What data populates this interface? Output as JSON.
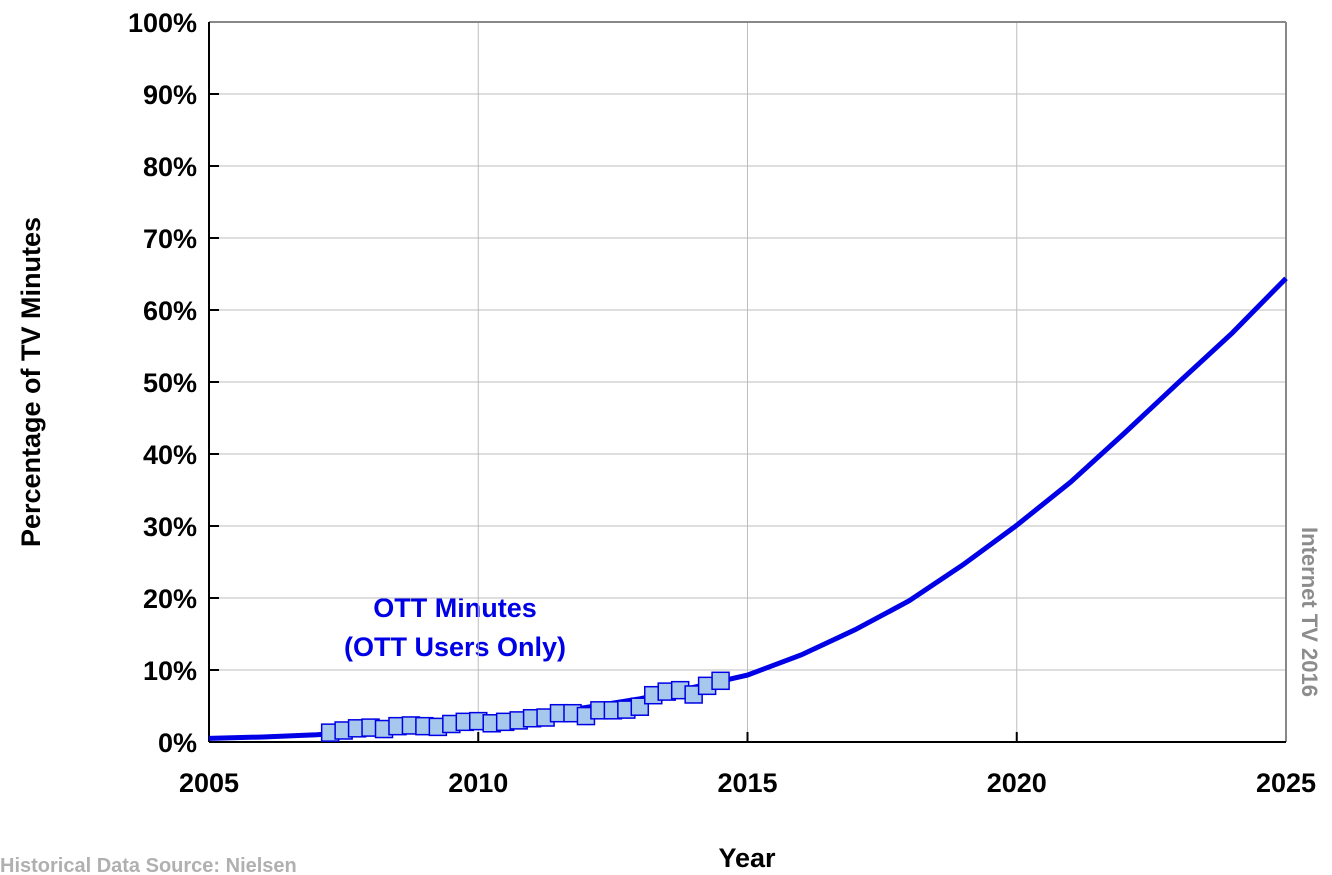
{
  "chart_data": {
    "type": "line",
    "y_label": "Percentage of TV Minutes",
    "x_label": "Year",
    "annotation": [
      "OTT Minutes",
      "(OTT Users Only)"
    ],
    "watermark": "Internet TV 2016",
    "source": "Historical Data Source: Nielsen",
    "xlim": [
      2005,
      2025
    ],
    "xticks": [
      2005,
      2010,
      2015,
      2020,
      2025
    ],
    "ylim": [
      0,
      100
    ],
    "yticks": [
      {
        "value": 0,
        "label": "0%"
      },
      {
        "value": 10,
        "label": "10%"
      },
      {
        "value": 20,
        "label": "20%"
      },
      {
        "value": 30,
        "label": "30%"
      },
      {
        "value": 40,
        "label": "40%"
      },
      {
        "value": 50,
        "label": "50%"
      },
      {
        "value": 60,
        "label": "60%"
      },
      {
        "value": 70,
        "label": "70%"
      },
      {
        "value": 80,
        "label": "80%"
      },
      {
        "value": 90,
        "label": "90%"
      },
      {
        "value": 100,
        "label": "100%"
      }
    ],
    "grid": true,
    "series": [
      {
        "color": "#0000e6",
        "style": "line",
        "x": [
          2005,
          2006,
          2007,
          2008,
          2009,
          2010,
          2011,
          2012,
          2013,
          2014,
          2015,
          2016,
          2017,
          2018,
          2019,
          2020,
          2021,
          2022,
          2023,
          2024,
          2025
        ],
        "values": [
          0.5,
          0.7,
          1.0,
          1.5,
          2.2,
          3.0,
          3.8,
          4.8,
          6.0,
          7.6,
          9.3,
          12.1,
          15.6,
          19.6,
          24.6,
          30.1,
          36.1,
          42.9,
          49.9,
          56.8,
          64.4
        ]
      },
      {
        "color": "#a6c8ec",
        "edge_color": "#0000e6",
        "style": "markers",
        "x": [
          2007.25,
          2007.5,
          2007.75,
          2008,
          2008.25,
          2008.5,
          2008.75,
          2009,
          2009.25,
          2009.5,
          2009.75,
          2010,
          2010.25,
          2010.5,
          2010.75,
          2011,
          2011.25,
          2011.5,
          2011.75,
          2012,
          2012.25,
          2012.5,
          2012.75,
          2013,
          2013.25,
          2013.5,
          2013.75,
          2014,
          2014.25,
          2014.5
        ],
        "values": [
          1.3,
          1.6,
          1.9,
          2.0,
          1.8,
          2.2,
          2.3,
          2.2,
          2.1,
          2.5,
          2.8,
          2.9,
          2.6,
          2.8,
          3.0,
          3.3,
          3.4,
          4.0,
          4.0,
          3.6,
          4.4,
          4.4,
          4.5,
          4.9,
          6.5,
          7.0,
          7.2,
          6.6,
          7.8,
          8.5
        ]
      }
    ]
  }
}
